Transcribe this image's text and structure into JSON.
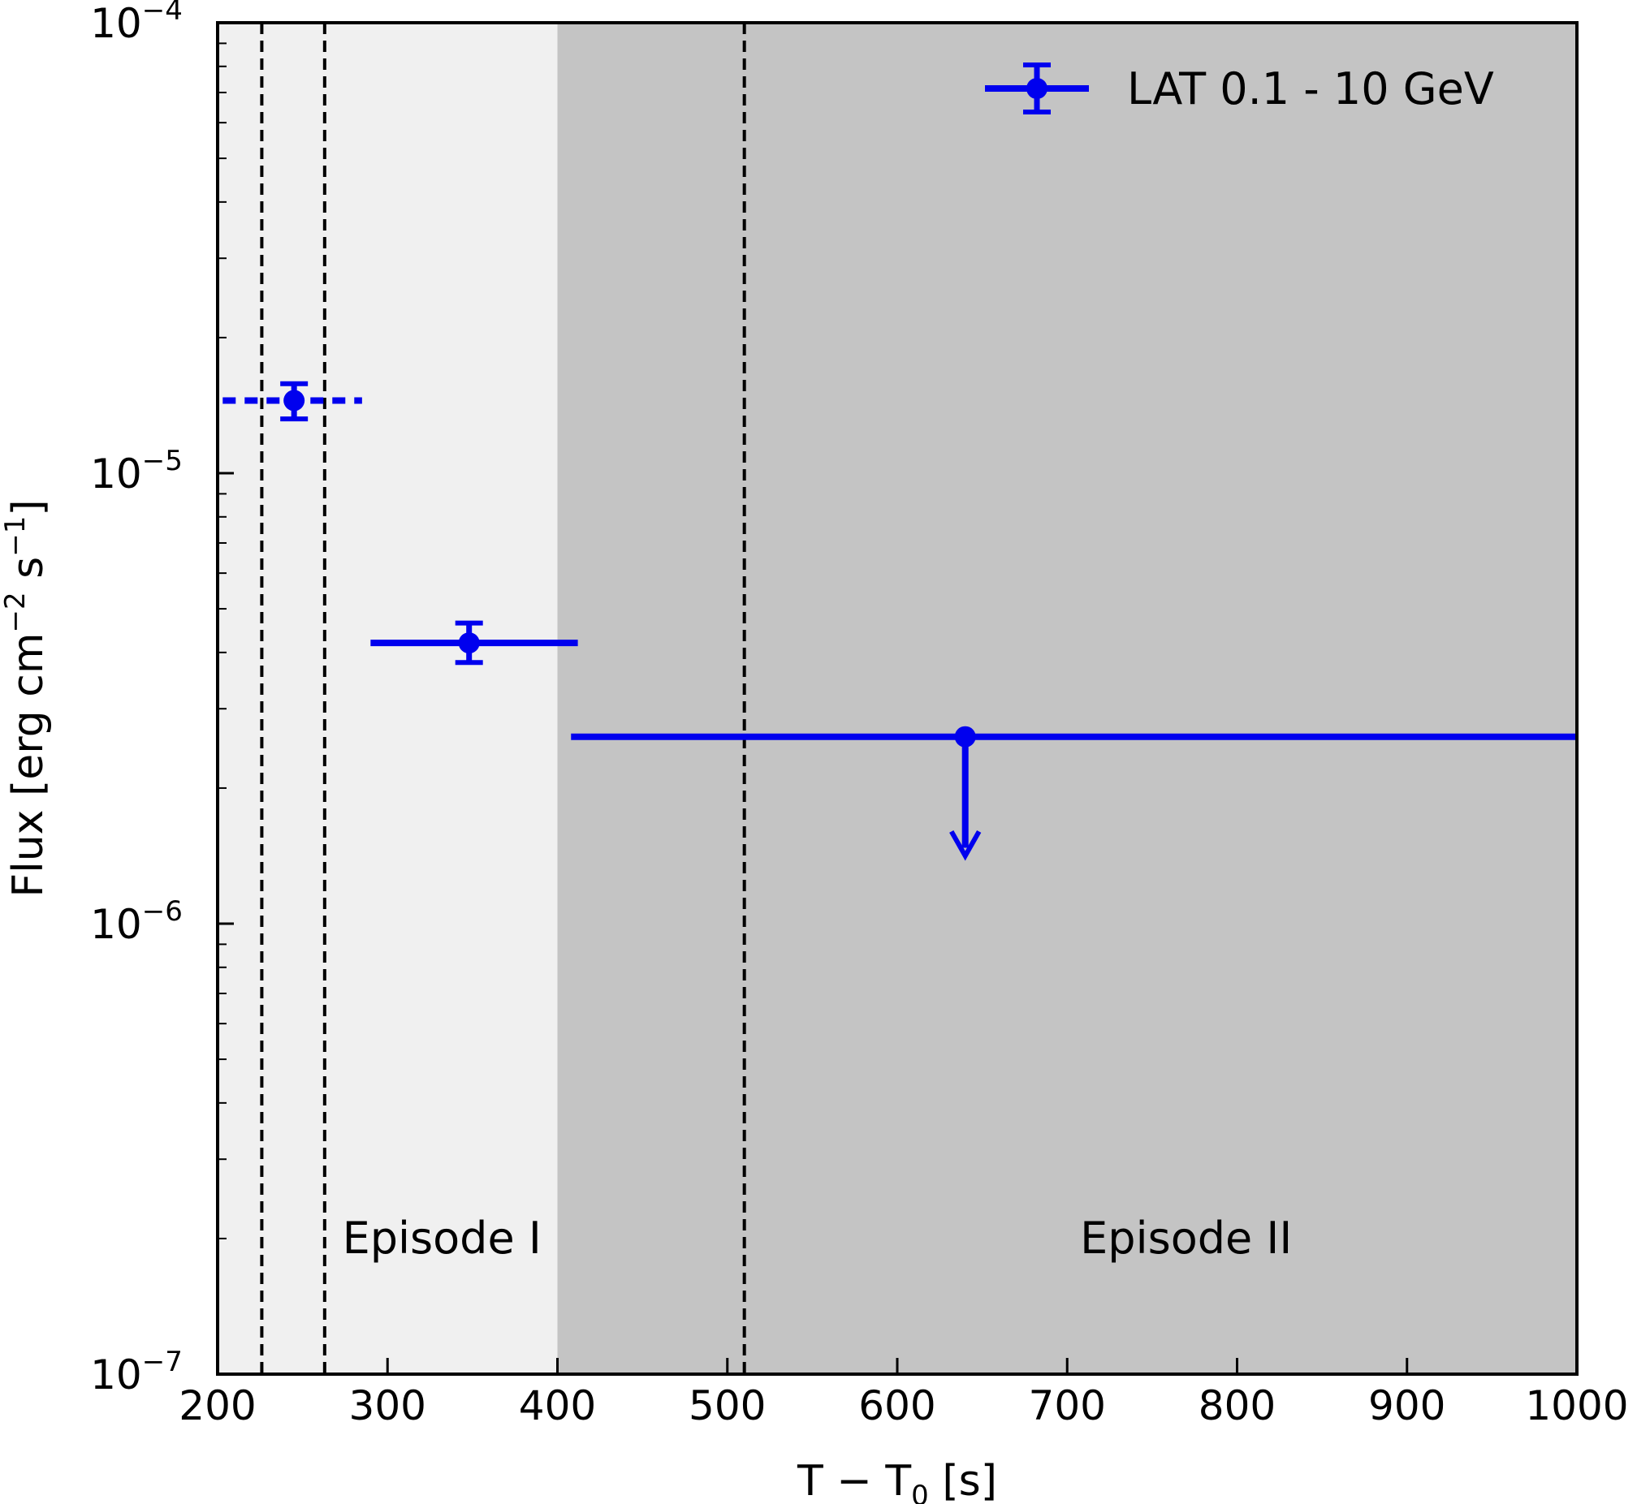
{
  "chart_data": {
    "type": "scatter",
    "xlabel": "T − T0 [s]",
    "ylabel": "Flux [erg cm−2 s−1]",
    "xlim": [
      200,
      1000
    ],
    "ylim": [
      1e-07,
      0.0001
    ],
    "yscale": "log",
    "grid": false,
    "legend_position": "top-right",
    "x_ticks": [
      "200",
      "300",
      "400",
      "500",
      "600",
      "700",
      "800",
      "900",
      "1000"
    ],
    "y_ticks": [
      "10^-7",
      "10^-6",
      "10^-5",
      "10^-4"
    ],
    "shaded_regions": [
      {
        "x": [
          200,
          400
        ],
        "color": "#f0f0f0"
      },
      {
        "x": [
          400,
          1000
        ],
        "color": "#c4c4c4"
      }
    ],
    "vertical_lines": [
      226,
      263,
      510
    ],
    "annotations": [
      {
        "text": "Episode I",
        "x": 332,
        "y": 2e-07
      },
      {
        "text": "Episode II",
        "x": 770,
        "y": 2e-07
      }
    ],
    "series": [
      {
        "name": "LAT 0.1 - 10 GeV",
        "color": "#0000ee",
        "points": [
          {
            "x": 245,
            "xmin": 203,
            "xmax": 285,
            "y": 1.45e-05,
            "ylow": 1.32e-05,
            "yhigh": 1.58e-05,
            "xerr_style": "dotted",
            "upper_limit": false
          },
          {
            "x": 348,
            "xmin": 290,
            "xmax": 412,
            "y": 4.2e-06,
            "ylow": 3.8e-06,
            "yhigh": 4.65e-06,
            "xerr_style": "solid",
            "upper_limit": false
          },
          {
            "x": 640,
            "xmin": 408,
            "xmax": 1000,
            "y": 2.6e-06,
            "arrow_to": 1.45e-06,
            "xerr_style": "solid",
            "upper_limit": true
          }
        ]
      }
    ]
  }
}
